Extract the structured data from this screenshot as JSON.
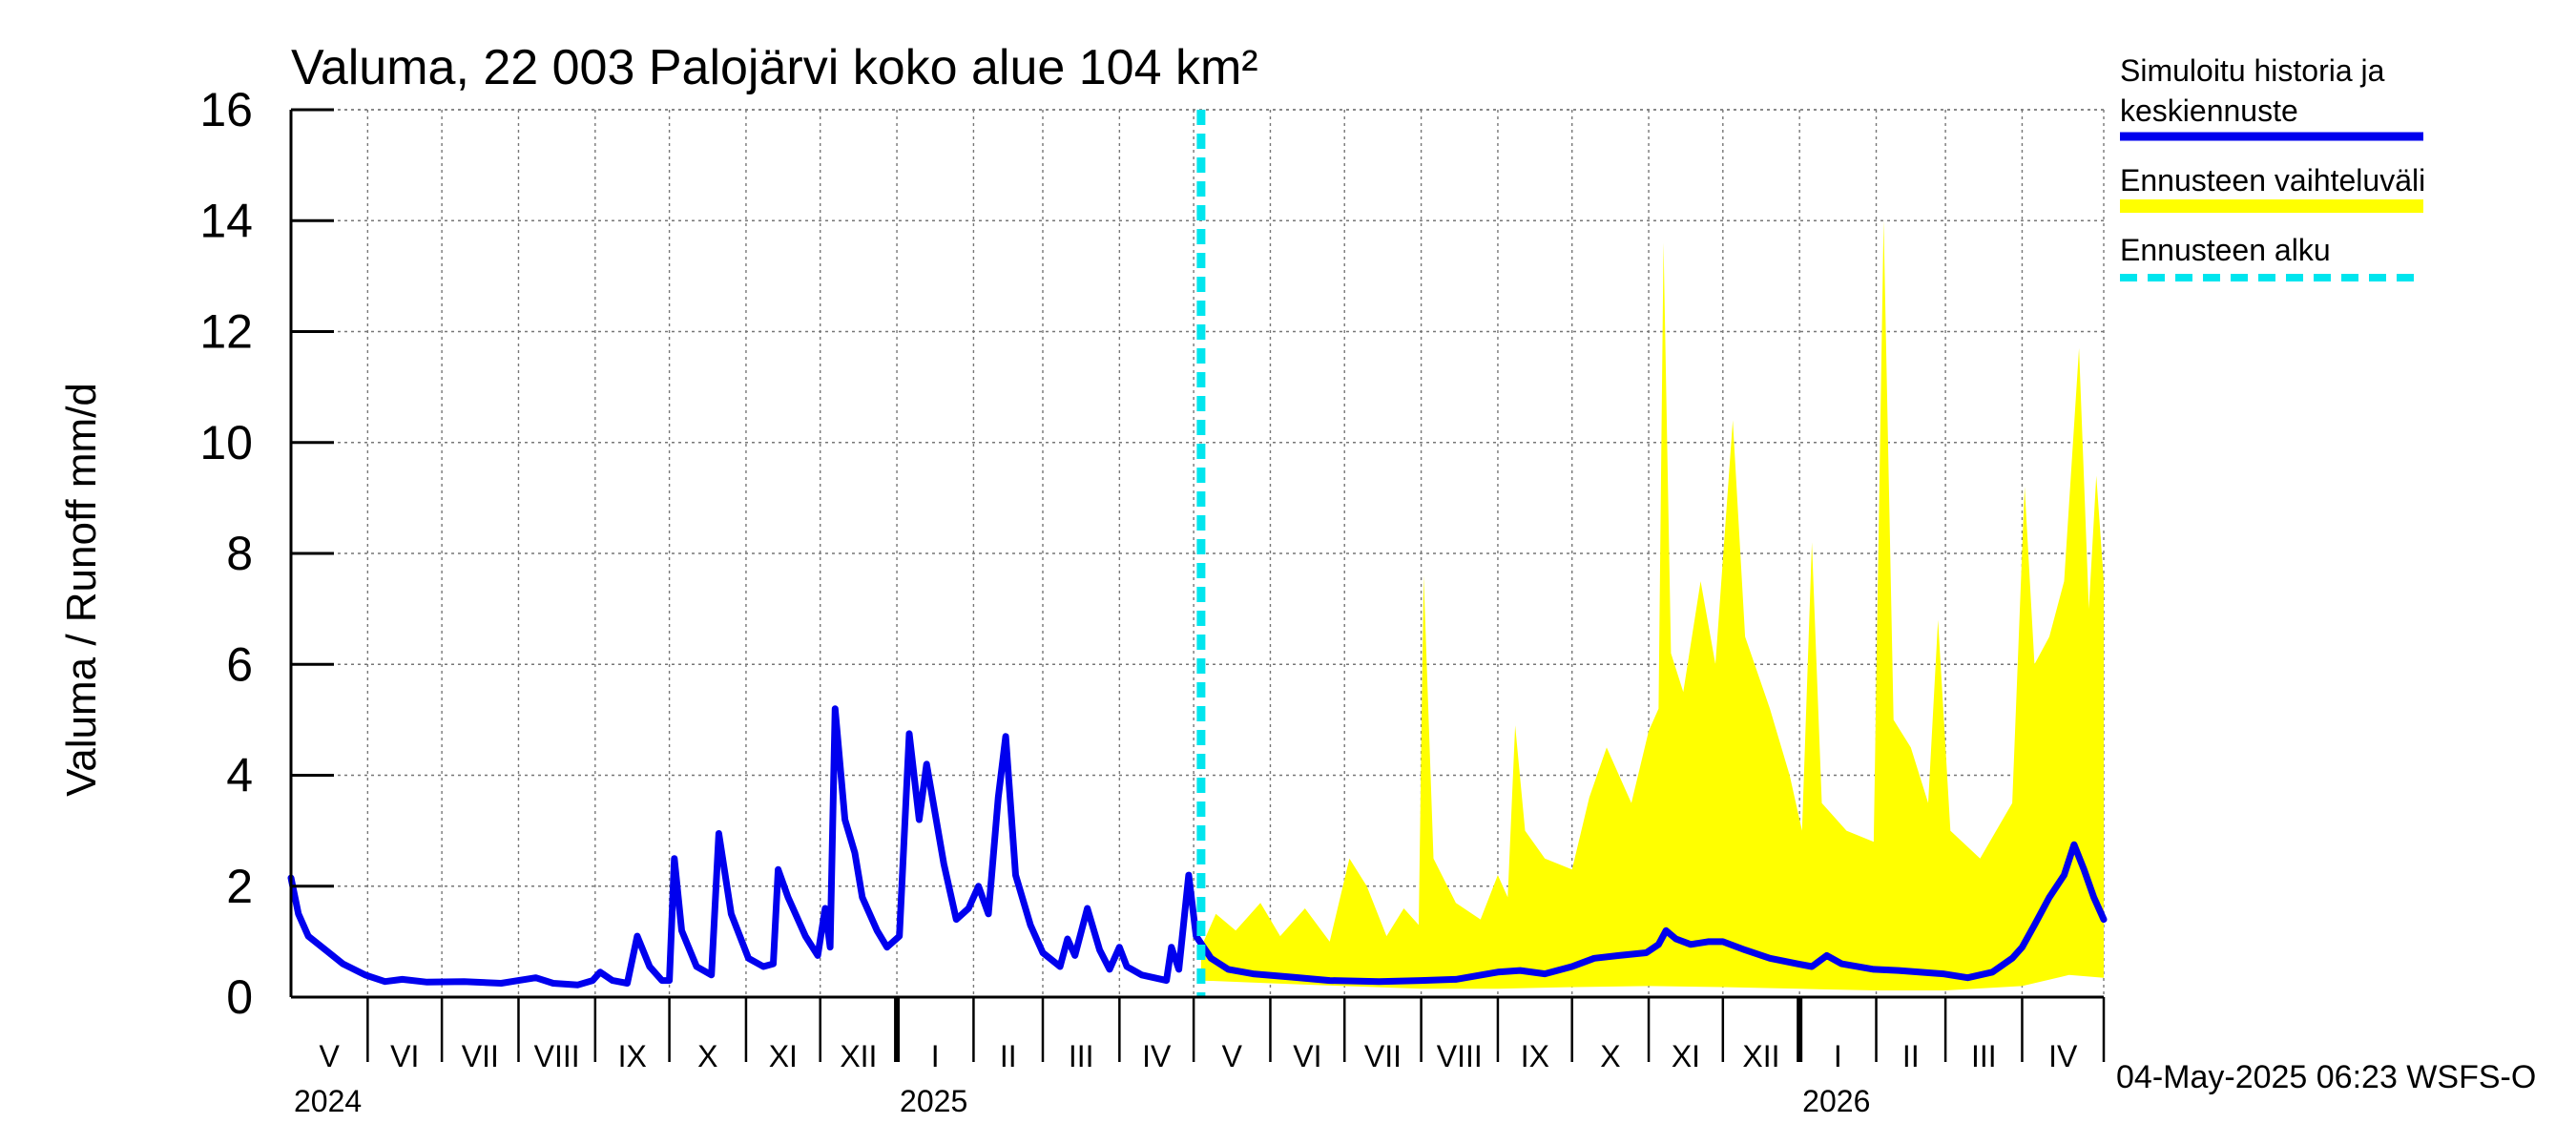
{
  "chart_data": {
    "type": "area",
    "title": "Valuma, 22 003 Palojärvi koko alue 104 km²",
    "ylabel": "Valuma / Runoff    mm/d",
    "xlabel": "",
    "ylim": [
      0,
      16
    ],
    "yticks": [
      0,
      2,
      4,
      6,
      8,
      10,
      12,
      14,
      16
    ],
    "x_start": "2024-05-01",
    "x_end": "2026-05-04",
    "forecast_start": "2025-05-04",
    "months": [
      {
        "label": "V",
        "start": "2024-05-01"
      },
      {
        "label": "VI",
        "start": "2024-06-01"
      },
      {
        "label": "VII",
        "start": "2024-07-01"
      },
      {
        "label": "VIII",
        "start": "2024-08-01"
      },
      {
        "label": "IX",
        "start": "2024-09-01"
      },
      {
        "label": "X",
        "start": "2024-10-01"
      },
      {
        "label": "XI",
        "start": "2024-11-01"
      },
      {
        "label": "XII",
        "start": "2024-12-01"
      },
      {
        "label": "I",
        "start": "2025-01-01"
      },
      {
        "label": "II",
        "start": "2025-02-01"
      },
      {
        "label": "III",
        "start": "2025-03-01"
      },
      {
        "label": "IV",
        "start": "2025-04-01"
      },
      {
        "label": "V",
        "start": "2025-05-01"
      },
      {
        "label": "VI",
        "start": "2025-06-01"
      },
      {
        "label": "VII",
        "start": "2025-07-01"
      },
      {
        "label": "VIII",
        "start": "2025-08-01"
      },
      {
        "label": "IX",
        "start": "2025-09-01"
      },
      {
        "label": "X",
        "start": "2025-10-01"
      },
      {
        "label": "XI",
        "start": "2025-11-01"
      },
      {
        "label": "XII",
        "start": "2025-12-01"
      },
      {
        "label": "I",
        "start": "2026-01-01"
      },
      {
        "label": "II",
        "start": "2026-02-01"
      },
      {
        "label": "III",
        "start": "2026-03-01"
      },
      {
        "label": "IV",
        "start": "2026-04-01"
      }
    ],
    "years": [
      {
        "label": "2024",
        "date": "2024-05-01"
      },
      {
        "label": "2025",
        "date": "2025-01-01"
      },
      {
        "label": "2026",
        "date": "2026-01-01"
      }
    ],
    "legend": {
      "position": "top-right",
      "items": [
        {
          "label": "Simuloitu historia ja keskiennuste",
          "style": "line",
          "color": "#0000ee"
        },
        {
          "label": "Ennusteen vaihteluväli",
          "style": "band",
          "color": "#ffff00"
        },
        {
          "label": "Ennusteen alku",
          "style": "dashed",
          "color": "#00e5ee"
        }
      ]
    },
    "series": [
      {
        "name": "Simuloitu historia ja keskiennuste",
        "color": "#0000ee",
        "points": [
          [
            "2024-05-01",
            2.15
          ],
          [
            "2024-05-04",
            1.5
          ],
          [
            "2024-05-08",
            1.1
          ],
          [
            "2024-05-15",
            0.85
          ],
          [
            "2024-05-22",
            0.6
          ],
          [
            "2024-05-31",
            0.4
          ],
          [
            "2024-06-08",
            0.28
          ],
          [
            "2024-06-15",
            0.32
          ],
          [
            "2024-06-25",
            0.27
          ],
          [
            "2024-07-10",
            0.28
          ],
          [
            "2024-07-25",
            0.25
          ],
          [
            "2024-08-01",
            0.3
          ],
          [
            "2024-08-08",
            0.35
          ],
          [
            "2024-08-15",
            0.25
          ],
          [
            "2024-08-25",
            0.22
          ],
          [
            "2024-08-31",
            0.3
          ],
          [
            "2024-09-03",
            0.45
          ],
          [
            "2024-09-08",
            0.3
          ],
          [
            "2024-09-14",
            0.25
          ],
          [
            "2024-09-18",
            1.1
          ],
          [
            "2024-09-23",
            0.55
          ],
          [
            "2024-09-28",
            0.3
          ],
          [
            "2024-10-01",
            0.3
          ],
          [
            "2024-10-03",
            2.5
          ],
          [
            "2024-10-06",
            1.2
          ],
          [
            "2024-10-12",
            0.55
          ],
          [
            "2024-10-18",
            0.4
          ],
          [
            "2024-10-21",
            2.95
          ],
          [
            "2024-10-26",
            1.5
          ],
          [
            "2024-11-02",
            0.7
          ],
          [
            "2024-11-08",
            0.55
          ],
          [
            "2024-11-12",
            0.6
          ],
          [
            "2024-11-14",
            2.3
          ],
          [
            "2024-11-18",
            1.8
          ],
          [
            "2024-11-25",
            1.1
          ],
          [
            "2024-11-30",
            0.75
          ],
          [
            "2024-12-03",
            1.6
          ],
          [
            "2024-12-05",
            0.9
          ],
          [
            "2024-12-07",
            5.2
          ],
          [
            "2024-12-11",
            3.2
          ],
          [
            "2024-12-15",
            2.6
          ],
          [
            "2024-12-18",
            1.8
          ],
          [
            "2024-12-24",
            1.2
          ],
          [
            "2024-12-28",
            0.9
          ],
          [
            "2025-01-02",
            1.1
          ],
          [
            "2025-01-06",
            4.75
          ],
          [
            "2025-01-10",
            3.2
          ],
          [
            "2025-01-13",
            4.2
          ],
          [
            "2025-01-20",
            2.4
          ],
          [
            "2025-01-25",
            1.4
          ],
          [
            "2025-01-30",
            1.6
          ],
          [
            "2025-02-03",
            2.0
          ],
          [
            "2025-02-07",
            1.5
          ],
          [
            "2025-02-11",
            3.6
          ],
          [
            "2025-02-14",
            4.7
          ],
          [
            "2025-02-18",
            2.2
          ],
          [
            "2025-02-24",
            1.3
          ],
          [
            "2025-03-01",
            0.8
          ],
          [
            "2025-03-08",
            0.55
          ],
          [
            "2025-03-11",
            1.05
          ],
          [
            "2025-03-14",
            0.75
          ],
          [
            "2025-03-19",
            1.6
          ],
          [
            "2025-03-24",
            0.85
          ],
          [
            "2025-03-28",
            0.5
          ],
          [
            "2025-04-01",
            0.9
          ],
          [
            "2025-04-04",
            0.55
          ],
          [
            "2025-04-10",
            0.4
          ],
          [
            "2025-04-20",
            0.3
          ],
          [
            "2025-04-22",
            0.9
          ],
          [
            "2025-04-25",
            0.5
          ],
          [
            "2025-04-29",
            2.2
          ],
          [
            "2025-05-02",
            1.1
          ],
          [
            "2025-05-08",
            0.7
          ],
          [
            "2025-05-15",
            0.5
          ],
          [
            "2025-05-25",
            0.42
          ],
          [
            "2025-06-10",
            0.36
          ],
          [
            "2025-06-25",
            0.3
          ],
          [
            "2025-07-15",
            0.28
          ],
          [
            "2025-08-01",
            0.3
          ],
          [
            "2025-08-15",
            0.32
          ],
          [
            "2025-09-01",
            0.45
          ],
          [
            "2025-09-10",
            0.48
          ],
          [
            "2025-09-20",
            0.42
          ],
          [
            "2025-10-01",
            0.55
          ],
          [
            "2025-10-10",
            0.7
          ],
          [
            "2025-10-20",
            0.75
          ],
          [
            "2025-10-31",
            0.8
          ],
          [
            "2025-11-05",
            0.95
          ],
          [
            "2025-11-08",
            1.2
          ],
          [
            "2025-11-12",
            1.05
          ],
          [
            "2025-11-18",
            0.95
          ],
          [
            "2025-11-25",
            1.0
          ],
          [
            "2025-12-01",
            1.0
          ],
          [
            "2025-12-10",
            0.85
          ],
          [
            "2025-12-20",
            0.7
          ],
          [
            "2025-12-31",
            0.6
          ],
          [
            "2026-01-06",
            0.55
          ],
          [
            "2026-01-12",
            0.75
          ],
          [
            "2026-01-18",
            0.6
          ],
          [
            "2026-01-31",
            0.5
          ],
          [
            "2026-02-10",
            0.48
          ],
          [
            "2026-02-28",
            0.42
          ],
          [
            "2026-03-10",
            0.35
          ],
          [
            "2026-03-20",
            0.45
          ],
          [
            "2026-03-28",
            0.7
          ],
          [
            "2026-04-01",
            0.9
          ],
          [
            "2026-04-06",
            1.3
          ],
          [
            "2026-04-12",
            1.8
          ],
          [
            "2026-04-18",
            2.2
          ],
          [
            "2026-04-22",
            2.75
          ],
          [
            "2026-04-26",
            2.3
          ],
          [
            "2026-04-30",
            1.8
          ],
          [
            "2026-05-04",
            1.4
          ]
        ]
      },
      {
        "name": "Ennusteen vaihteluväli",
        "color": "#ffff00",
        "upper": [
          [
            "2025-05-04",
            0.9
          ],
          [
            "2025-05-10",
            1.5
          ],
          [
            "2025-05-18",
            1.2
          ],
          [
            "2025-05-28",
            1.7
          ],
          [
            "2025-06-05",
            1.1
          ],
          [
            "2025-06-15",
            1.6
          ],
          [
            "2025-06-25",
            1.0
          ],
          [
            "2025-07-03",
            2.5
          ],
          [
            "2025-07-10",
            2.0
          ],
          [
            "2025-07-18",
            1.1
          ],
          [
            "2025-07-25",
            1.6
          ],
          [
            "2025-07-31",
            1.3
          ],
          [
            "2025-08-02",
            7.6
          ],
          [
            "2025-08-06",
            2.5
          ],
          [
            "2025-08-15",
            1.7
          ],
          [
            "2025-08-25",
            1.4
          ],
          [
            "2025-09-01",
            2.2
          ],
          [
            "2025-09-05",
            1.8
          ],
          [
            "2025-09-08",
            4.9
          ],
          [
            "2025-09-12",
            3.0
          ],
          [
            "2025-09-20",
            2.5
          ],
          [
            "2025-10-01",
            2.3
          ],
          [
            "2025-10-08",
            3.6
          ],
          [
            "2025-10-15",
            4.5
          ],
          [
            "2025-10-25",
            3.5
          ],
          [
            "2025-11-01",
            4.8
          ],
          [
            "2025-11-05",
            5.2
          ],
          [
            "2025-11-07",
            13.6
          ],
          [
            "2025-11-10",
            6.2
          ],
          [
            "2025-11-15",
            5.5
          ],
          [
            "2025-11-22",
            7.5
          ],
          [
            "2025-11-28",
            6.0
          ],
          [
            "2025-12-05",
            10.4
          ],
          [
            "2025-12-10",
            6.5
          ],
          [
            "2025-12-20",
            5.2
          ],
          [
            "2025-12-28",
            4.0
          ],
          [
            "2026-01-02",
            3.0
          ],
          [
            "2026-01-06",
            8.2
          ],
          [
            "2026-01-10",
            3.5
          ],
          [
            "2026-01-20",
            3.0
          ],
          [
            "2026-01-31",
            2.8
          ],
          [
            "2026-02-04",
            14.0
          ],
          [
            "2026-02-08",
            5.0
          ],
          [
            "2026-02-15",
            4.5
          ],
          [
            "2026-02-22",
            3.5
          ],
          [
            "2026-02-26",
            6.8
          ],
          [
            "2026-03-03",
            3.0
          ],
          [
            "2026-03-15",
            2.5
          ],
          [
            "2026-03-28",
            3.5
          ],
          [
            "2026-04-02",
            9.2
          ],
          [
            "2026-04-06",
            6.0
          ],
          [
            "2026-04-12",
            6.5
          ],
          [
            "2026-04-18",
            7.5
          ],
          [
            "2026-04-24",
            11.7
          ],
          [
            "2026-04-28",
            7.0
          ],
          [
            "2026-05-01",
            9.4
          ],
          [
            "2026-05-04",
            7.5
          ]
        ],
        "lower": [
          [
            "2025-05-04",
            0.3
          ],
          [
            "2025-06-01",
            0.25
          ],
          [
            "2025-07-01",
            0.2
          ],
          [
            "2025-08-01",
            0.15
          ],
          [
            "2025-09-01",
            0.15
          ],
          [
            "2025-10-01",
            0.18
          ],
          [
            "2025-11-01",
            0.2
          ],
          [
            "2025-12-01",
            0.18
          ],
          [
            "2026-01-01",
            0.15
          ],
          [
            "2026-02-01",
            0.12
          ],
          [
            "2026-03-01",
            0.12
          ],
          [
            "2026-04-01",
            0.2
          ],
          [
            "2026-04-20",
            0.4
          ],
          [
            "2026-05-04",
            0.35
          ]
        ]
      }
    ],
    "footer_text": "04-May-2025 06:23 WSFS-O"
  }
}
